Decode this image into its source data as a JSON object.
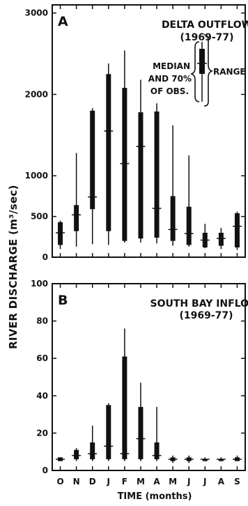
{
  "figure": {
    "ylabel": "RIVER DISCHARGE (m³/sec)",
    "xlabel": "TIME (months)",
    "months": [
      "O",
      "N",
      "D",
      "J",
      "F",
      "M",
      "A",
      "M",
      "J",
      "J",
      "A",
      "S"
    ]
  },
  "legend": {
    "median_line1": "MEDIAN",
    "median_line2": "AND 70%",
    "median_line3": "OF OBS.",
    "range": "RANGE"
  },
  "chart_data": [
    {
      "type": "box",
      "panel_letter": "A",
      "title_line1": "DELTA OUTFLOW",
      "title_line2": "(1969-77)",
      "ylim": [
        0,
        3100
      ],
      "yticks": [
        0,
        500,
        1000,
        2000,
        3000
      ],
      "categories": [
        "O",
        "N",
        "D",
        "J",
        "F",
        "M",
        "A",
        "M",
        "J",
        "J",
        "A",
        "S"
      ],
      "range_low": [
        100,
        130,
        160,
        150,
        180,
        180,
        170,
        140,
        130,
        110,
        100,
        90
      ],
      "range_high": [
        450,
        1280,
        1830,
        2380,
        2540,
        2180,
        1890,
        1620,
        1250,
        410,
        360,
        560
      ],
      "p15": [
        150,
        320,
        590,
        320,
        200,
        230,
        240,
        200,
        150,
        120,
        140,
        120
      ],
      "p85": [
        430,
        640,
        1800,
        2250,
        2080,
        1780,
        1790,
        750,
        620,
        300,
        300,
        540
      ],
      "median": [
        300,
        520,
        740,
        1550,
        1150,
        1360,
        600,
        340,
        290,
        210,
        230,
        380
      ]
    },
    {
      "type": "box",
      "panel_letter": "B",
      "title_line1": "SOUTH BAY INFLOW",
      "title_line2": "(1969-77)",
      "ylim": [
        0,
        100
      ],
      "yticks": [
        0,
        20,
        40,
        60,
        80,
        100
      ],
      "categories": [
        "O",
        "N",
        "D",
        "J",
        "F",
        "M",
        "A",
        "M",
        "J",
        "J",
        "A",
        "S"
      ],
      "range_low": [
        5,
        5,
        5,
        5,
        5,
        5,
        5,
        4,
        4,
        5,
        5,
        5
      ],
      "range_high": [
        7,
        12,
        24,
        36,
        76,
        47,
        34,
        8,
        8,
        7,
        7,
        8
      ],
      "p15": [
        5,
        6,
        6,
        6,
        6,
        6,
        6,
        5,
        5,
        5,
        5,
        5
      ],
      "p85": [
        7,
        11,
        15,
        35,
        61,
        34,
        15,
        7,
        7,
        6,
        6,
        7
      ],
      "median": [
        6,
        8,
        9,
        13,
        9,
        17,
        8,
        6,
        6,
        6,
        6,
        6
      ]
    }
  ]
}
